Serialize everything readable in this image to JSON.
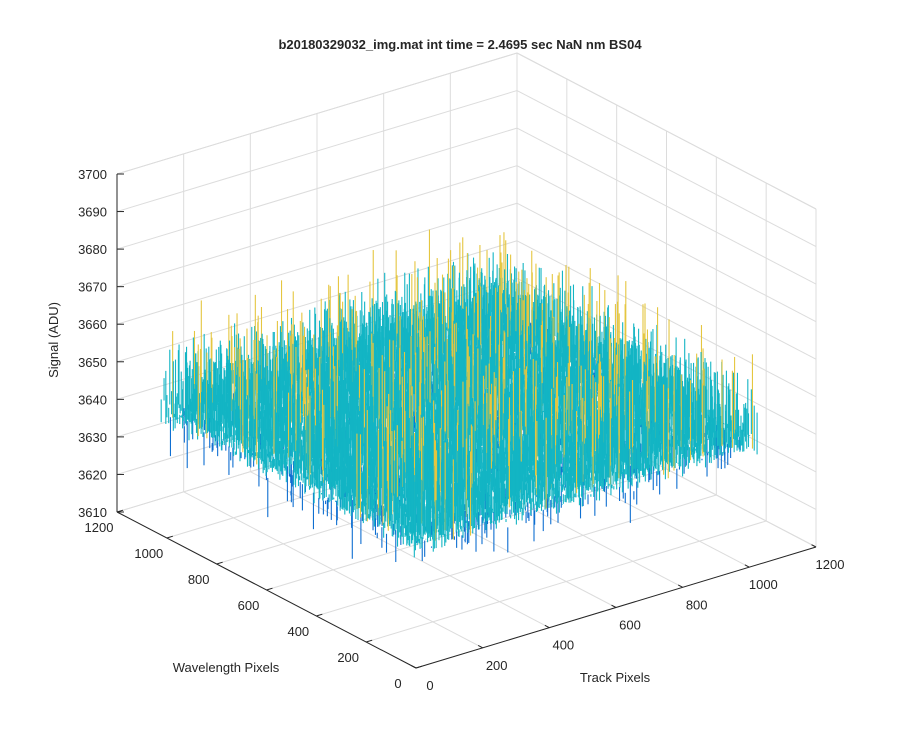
{
  "chart_data": {
    "type": "surface",
    "title": "b20180329032_img.mat int time = 2.4695 sec  NaN nm BS04",
    "xlabel": "Track Pixels",
    "ylabel": "Wavelength Pixels",
    "zlabel": "Signal (ADU)",
    "xlim": [
      0,
      1200
    ],
    "ylim": [
      0,
      1200
    ],
    "zlim": [
      3610,
      3700
    ],
    "xticks": [
      "0",
      "200",
      "400",
      "600",
      "800",
      "1000",
      "1200"
    ],
    "yticks": [
      "0",
      "200",
      "400",
      "600",
      "800",
      "1000",
      "1200"
    ],
    "zticks": [
      "3610",
      "3620",
      "3630",
      "3640",
      "3650",
      "3660",
      "3670",
      "3680",
      "3690",
      "3700"
    ],
    "grid": true,
    "colormap": "parula",
    "colors": {
      "low": "#0f6fd1",
      "mid": "#13b5c4",
      "high": "#e5c640",
      "grid": "#dcdcdc",
      "axis": "#262626"
    },
    "data_extent": {
      "x": [
        1,
        1024
      ],
      "y": [
        1,
        1024
      ],
      "z_mean": 3650,
      "z_min": 3612,
      "z_max": 3693
    }
  }
}
